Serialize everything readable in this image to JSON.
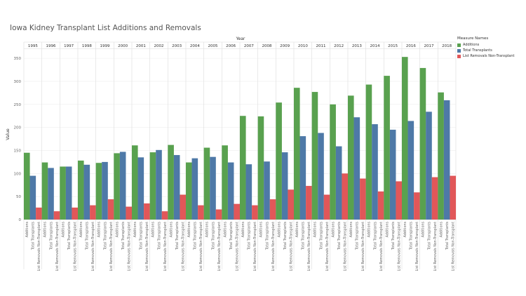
{
  "title": "Iowa Kidney Transplant List Additions and Removals",
  "legend": {
    "title": "Measure Names",
    "items": [
      {
        "label": "Additions",
        "color": "#59a14f"
      },
      {
        "label": "Total Transplants",
        "color": "#4e79a7"
      },
      {
        "label": "List Removals Non-Transplant",
        "color": "#e15759"
      }
    ]
  },
  "chart_data": {
    "type": "bar",
    "title": "Iowa Kidney Transplant List Additions and Removals",
    "column_header": "Year",
    "ylabel": "Value",
    "ylim": [
      0,
      370
    ],
    "yticks": [
      0,
      50,
      100,
      150,
      200,
      250,
      300,
      350
    ],
    "grid": true,
    "legend_position": "right",
    "categories": [
      "1995",
      "1996",
      "1997",
      "1998",
      "1999",
      "2000",
      "2001",
      "2002",
      "2003",
      "2004",
      "2005",
      "2006",
      "2007",
      "2008",
      "2009",
      "2010",
      "2011",
      "2012",
      "2013",
      "2014",
      "2015",
      "2016",
      "2017",
      "2018"
    ],
    "measures": [
      "Additions",
      "Total Transplants",
      "List Removals Non-Transplant"
    ],
    "series": [
      {
        "name": "Additions",
        "color": "#59a14f",
        "values": [
          145,
          124,
          115,
          128,
          123,
          144,
          161,
          146,
          162,
          124,
          156,
          161,
          225,
          224,
          254,
          286,
          277,
          250,
          269,
          293,
          312,
          353,
          329,
          276
        ]
      },
      {
        "name": "Total Transplants",
        "color": "#4e79a7",
        "values": [
          95,
          112,
          115,
          119,
          125,
          147,
          135,
          151,
          140,
          133,
          136,
          124,
          120,
          126,
          146,
          181,
          188,
          159,
          222,
          207,
          195,
          214,
          234,
          259
        ]
      },
      {
        "name": "List Removals Non-Transplant",
        "color": "#e15759",
        "values": [
          26,
          18,
          26,
          31,
          44,
          28,
          35,
          18,
          54,
          31,
          22,
          34,
          31,
          44,
          65,
          73,
          54,
          100,
          89,
          61,
          83,
          59,
          92,
          95
        ]
      }
    ]
  }
}
